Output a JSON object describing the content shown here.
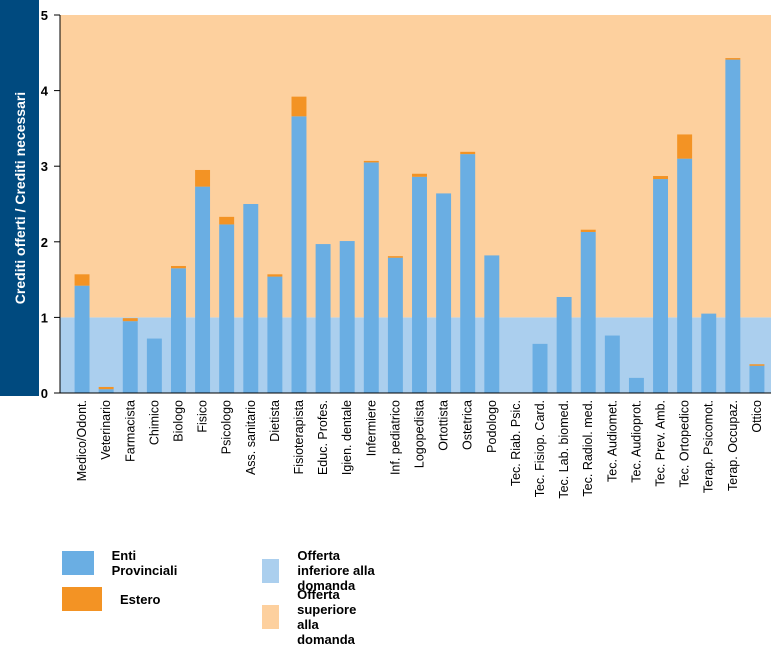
{
  "chart_data": {
    "type": "bar",
    "ylabel": "Crediti offerti / Crediti necessari",
    "ylim": [
      0,
      5
    ],
    "yticks": [
      "0",
      "1",
      "2",
      "3",
      "4",
      "5"
    ],
    "grid": false,
    "background_bands": [
      {
        "name": "Offerta inferiore alla domanda",
        "from": 0,
        "to": 1,
        "color": "#abcfee"
      },
      {
        "name": "Offerta superiore alla domanda",
        "from": 1,
        "to": 5,
        "color": "#fdd09e"
      }
    ],
    "categories": [
      "Medico/Odont.",
      "Veterinario",
      "Farmacista",
      "Chimico",
      "Biologo",
      "Fisico",
      "Psicologo",
      "Ass. sanitario",
      "Dietista",
      "Fisioterapista",
      "Educ. Profes.",
      "Igien. dentale",
      "Infermiere",
      "Inf. pediatrico",
      "Logopedista",
      "Ortottista",
      "Ostetrica",
      "Podologo",
      "Tec. Riab. Psic.",
      "Tec. Fisiop. Card.",
      "Tec. Lab. biomed.",
      "Tec. Radiol. med.",
      "Tec. Audiomet.",
      "Tec. Audioprot.",
      "Tec. Prev. Amb.",
      "Tec. Ortopedico",
      "Terap. Psicomot.",
      "Terap. Occupaz.",
      "Ottico"
    ],
    "series": [
      {
        "name": "Enti Provinciali",
        "color": "#6aaee3",
        "values": [
          1.42,
          0.05,
          0.95,
          0.72,
          1.65,
          2.73,
          2.23,
          2.5,
          1.54,
          3.66,
          1.97,
          2.01,
          3.05,
          1.79,
          2.86,
          2.64,
          3.16,
          1.82,
          0.0,
          0.65,
          1.27,
          2.13,
          0.76,
          0.2,
          2.83,
          3.1,
          1.05,
          4.41,
          0.36
        ]
      },
      {
        "name": "Estero",
        "color": "#f39324",
        "values": [
          0.15,
          0.03,
          0.04,
          0.0,
          0.03,
          0.22,
          0.1,
          0.0,
          0.03,
          0.26,
          0.0,
          0.0,
          0.02,
          0.02,
          0.04,
          0.0,
          0.03,
          0.0,
          0.0,
          0.0,
          0.0,
          0.03,
          0.0,
          0.0,
          0.04,
          0.32,
          0.0,
          0.02,
          0.02
        ]
      }
    ],
    "legend": [
      {
        "label": "Enti Provinciali",
        "color": "#6aaee3"
      },
      {
        "label": "Offerta inferiore alla domanda",
        "color": "#abcfee"
      },
      {
        "label": "Estero",
        "color": "#f39324"
      },
      {
        "label": "Offerta superiore alla domanda",
        "color": "#fdd09e"
      }
    ],
    "legend_position": "bottom"
  }
}
